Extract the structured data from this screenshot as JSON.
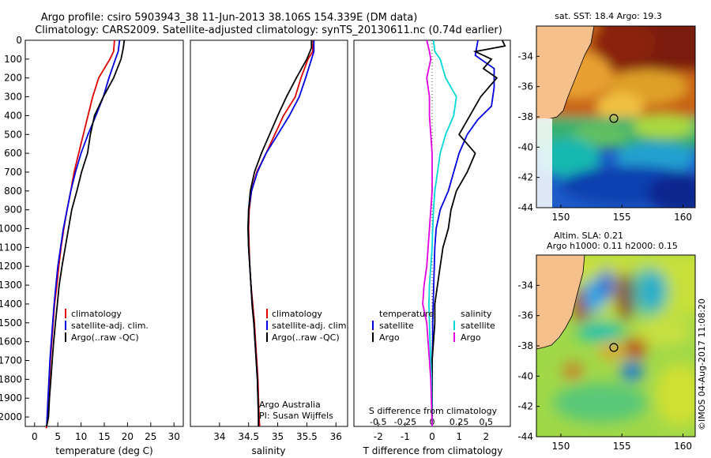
{
  "title": {
    "line1": "Argo profile: csiro 5903943_38 11-Jun-2013 38.106S 154.339E (DM data)",
    "line2": "Climatology: CARS2009. Satellite-adjusted climatology: synTS_20130611.nc (0.74d earlier)"
  },
  "chart_data": [
    {
      "type": "line",
      "name": "temperature-profile",
      "xlabel": "temperature (deg C)",
      "ylabel": "depth",
      "xlim": [
        -2,
        32
      ],
      "ylim": [
        2050,
        0
      ],
      "xticks": [
        0,
        5,
        10,
        15,
        20,
        25,
        30
      ],
      "yticks": [
        0,
        100,
        200,
        300,
        400,
        500,
        600,
        700,
        800,
        900,
        1000,
        1100,
        1200,
        1300,
        1400,
        1500,
        1600,
        1700,
        1800,
        1900,
        2000
      ],
      "legend": [
        "climatology",
        "satellite-adj. clim.",
        "Argo(..raw -QC)"
      ],
      "series": [
        {
          "name": "climatology",
          "color": "#e00000",
          "x": [
            17.2,
            17.0,
            16.2,
            13.8,
            12.5,
            11.5,
            10.5,
            9.5,
            8.5,
            7.8,
            7.0,
            6.3,
            5.7,
            5.2,
            4.8,
            4.3,
            4.0,
            3.7,
            3.4,
            3.2,
            2.9,
            2.8,
            2.6,
            2.5
          ],
          "y": [
            0,
            60,
            100,
            200,
            300,
            400,
            500,
            600,
            700,
            800,
            900,
            1000,
            1100,
            1200,
            1300,
            1400,
            1500,
            1600,
            1700,
            1800,
            1900,
            2000,
            2050,
            2060
          ]
        },
        {
          "name": "satellite-adj. clim.",
          "color": "#0000e0",
          "x": [
            18.3,
            18.0,
            17.4,
            16.0,
            14.8,
            13.2,
            11.5,
            10.0,
            8.8,
            7.8,
            7.0,
            6.2,
            5.6,
            5.0,
            4.6,
            4.2,
            3.9,
            3.6,
            3.3,
            3.1,
            2.9,
            2.7,
            2.6
          ],
          "y": [
            0,
            60,
            100,
            200,
            300,
            400,
            500,
            600,
            700,
            800,
            900,
            1000,
            1100,
            1200,
            1300,
            1400,
            1500,
            1600,
            1700,
            1800,
            1900,
            2000,
            2050
          ]
        },
        {
          "name": "Argo(..raw -QC)",
          "color": "#000000",
          "x": [
            19.3,
            19.1,
            18.6,
            17.0,
            14.8,
            12.9,
            12.0,
            11.4,
            10.1,
            9.1,
            8.0,
            7.3,
            6.6,
            5.9,
            5.3,
            4.9,
            4.5,
            4.1,
            3.8,
            3.5,
            3.2,
            3.0,
            2.7,
            2.5
          ],
          "y": [
            0,
            40,
            100,
            200,
            300,
            400,
            500,
            600,
            700,
            800,
            900,
            1000,
            1100,
            1200,
            1300,
            1400,
            1500,
            1600,
            1700,
            1800,
            1900,
            2000,
            2040,
            2050
          ]
        }
      ]
    },
    {
      "type": "line",
      "name": "salinity-profile",
      "xlabel": "salinity",
      "xlim": [
        33.5,
        36.2
      ],
      "ylim": [
        2050,
        0
      ],
      "xticks": [
        34,
        34.5,
        35,
        35.5,
        36
      ],
      "legend": [
        "climatology",
        "satellite-adj. clim.",
        "Argo(..raw -QC)"
      ],
      "series": [
        {
          "name": "climatology",
          "color": "#e00000",
          "x": [
            35.61,
            35.6,
            35.52,
            35.4,
            35.3,
            35.1,
            34.95,
            34.8,
            34.64,
            34.55,
            34.51,
            34.5,
            34.51,
            34.52,
            34.54,
            34.57,
            34.6,
            34.62,
            34.64,
            34.66,
            34.67,
            34.68,
            34.69
          ],
          "y": [
            0,
            60,
            100,
            200,
            300,
            400,
            500,
            600,
            700,
            800,
            900,
            1000,
            1100,
            1200,
            1300,
            1400,
            1500,
            1600,
            1700,
            1800,
            1900,
            2000,
            2050
          ]
        },
        {
          "name": "satellite-adj. clim.",
          "color": "#0000e0",
          "x": [
            35.62,
            35.62,
            35.58,
            35.48,
            35.37,
            35.2,
            35.0,
            34.8,
            34.65,
            34.55,
            34.5,
            34.49,
            34.5,
            34.52,
            34.54,
            34.56,
            34.59,
            34.61,
            34.63,
            34.65,
            34.66,
            34.67,
            34.67
          ],
          "y": [
            0,
            60,
            100,
            200,
            300,
            400,
            500,
            600,
            700,
            800,
            900,
            1000,
            1100,
            1200,
            1300,
            1400,
            1500,
            1600,
            1700,
            1800,
            1900,
            2000,
            2050
          ]
        },
        {
          "name": "Argo(..raw -QC)",
          "color": "#000000",
          "x": [
            35.58,
            35.58,
            35.5,
            35.32,
            35.15,
            35.0,
            34.86,
            34.72,
            34.6,
            34.53,
            34.5,
            34.49,
            34.5,
            34.52,
            34.54,
            34.56,
            34.59,
            34.61,
            34.63,
            34.65,
            34.66,
            34.67,
            34.67
          ],
          "y": [
            0,
            40,
            100,
            200,
            300,
            400,
            500,
            600,
            700,
            800,
            900,
            1000,
            1100,
            1200,
            1300,
            1400,
            1500,
            1600,
            1700,
            1800,
            1900,
            2000,
            2050
          ]
        }
      ],
      "annotations": [
        "Argo Australia",
        "PI: Susan Wijffels"
      ]
    },
    {
      "type": "line",
      "name": "difference-profile",
      "xlabel": "T difference from climatology",
      "xlabel_top": "S difference from climatology",
      "xlim": [
        -2.9,
        2.9
      ],
      "ylim": [
        2050,
        0
      ],
      "xticks_T": [
        -2,
        -1,
        0,
        1,
        2
      ],
      "xticks_S": [
        -0.5,
        -0.25,
        0,
        0.25,
        0.5
      ],
      "xticks_S_labels": [
        "-0.5",
        "-0.25",
        "0",
        "0.25",
        "0.5"
      ],
      "legend_temperature_title": "temperature",
      "legend_salinity_title": "salinity",
      "legend_items": [
        "satellite",
        "Argo",
        "satellite",
        "Argo"
      ],
      "series": [
        {
          "name": "T satellite",
          "color": "#0000e0",
          "x": [
            1.7,
            1.6,
            2.3,
            2.3,
            2.2,
            1.7,
            1.3,
            1.0,
            0.8,
            0.6,
            0.3,
            0.15,
            0.1,
            0.08,
            0.06,
            0.04,
            0.02,
            0.02,
            0.0,
            0.0,
            0.0,
            0.0,
            0.0
          ],
          "y": [
            0,
            80,
            150,
            250,
            350,
            420,
            500,
            600,
            700,
            800,
            900,
            1000,
            1100,
            1200,
            1300,
            1400,
            1500,
            1600,
            1700,
            1800,
            1900,
            2000,
            2050
          ]
        },
        {
          "name": "T Argo",
          "color": "#000000",
          "x": [
            2.6,
            2.7,
            1.6,
            2.2,
            1.9,
            2.4,
            1.8,
            1.4,
            1.0,
            1.6,
            1.3,
            0.9,
            0.7,
            0.6,
            0.4,
            0.3,
            0.2,
            0.1,
            0.1,
            0.05,
            0.0,
            0.0,
            0.0,
            0.0
          ],
          "y": [
            0,
            30,
            60,
            100,
            150,
            200,
            300,
            400,
            500,
            600,
            700,
            800,
            900,
            1000,
            1100,
            1200,
            1300,
            1400,
            1500,
            1600,
            1700,
            1800,
            1900,
            2050
          ]
        },
        {
          "name": "S satellite",
          "color": "#00d8d8",
          "x": [
            0.05,
            0.1,
            0.3,
            0.5,
            0.9,
            0.8,
            0.5,
            0.3,
            0.2,
            0.1,
            0.05,
            0.02,
            0.0,
            -0.05,
            -0.1,
            -0.12,
            -0.1,
            -0.08,
            -0.05,
            -0.02,
            0.0
          ],
          "y": [
            0,
            60,
            100,
            200,
            300,
            400,
            500,
            600,
            700,
            800,
            900,
            1000,
            1100,
            1200,
            1300,
            1400,
            1500,
            1600,
            1700,
            1800,
            2050
          ]
        },
        {
          "name": "S Argo",
          "color": "#e000e0",
          "x": [
            -0.2,
            -0.1,
            -0.05,
            -0.2,
            -0.1,
            -0.1,
            -0.05,
            0.0,
            0.0,
            0.0,
            -0.05,
            -0.1,
            -0.15,
            -0.2,
            -0.3,
            -0.35,
            -0.2,
            -0.15,
            -0.1,
            -0.05,
            0.0
          ],
          "y": [
            0,
            60,
            100,
            200,
            300,
            400,
            500,
            600,
            700,
            800,
            900,
            1000,
            1100,
            1200,
            1300,
            1400,
            1500,
            1600,
            1700,
            1800,
            2050
          ]
        }
      ]
    },
    {
      "type": "heatmap",
      "name": "sst-map",
      "title": "sat. SST: 18.4  Argo: 19.3",
      "xlim": [
        148,
        161
      ],
      "ylim": [
        -44,
        -32
      ],
      "xticks": [
        150,
        155,
        160
      ],
      "yticks": [
        -34,
        -36,
        -38,
        -40,
        -42,
        -44
      ],
      "marker": {
        "lon": 154.339,
        "lat": -38.106
      }
    },
    {
      "type": "heatmap",
      "name": "sla-map",
      "title_line1": "Altim. SLA: 0.21",
      "title_line2": "Argo h1000: 0.11 h2000: 0.15",
      "xlim": [
        148,
        161
      ],
      "ylim": [
        -44,
        -32
      ],
      "xticks": [
        150,
        155,
        160
      ],
      "yticks": [
        -34,
        -36,
        -38,
        -40,
        -42,
        -44
      ],
      "marker": {
        "lon": 154.339,
        "lat": -38.106
      }
    }
  ],
  "credit": "©IMOS 04-Aug-2017 11:08:20"
}
